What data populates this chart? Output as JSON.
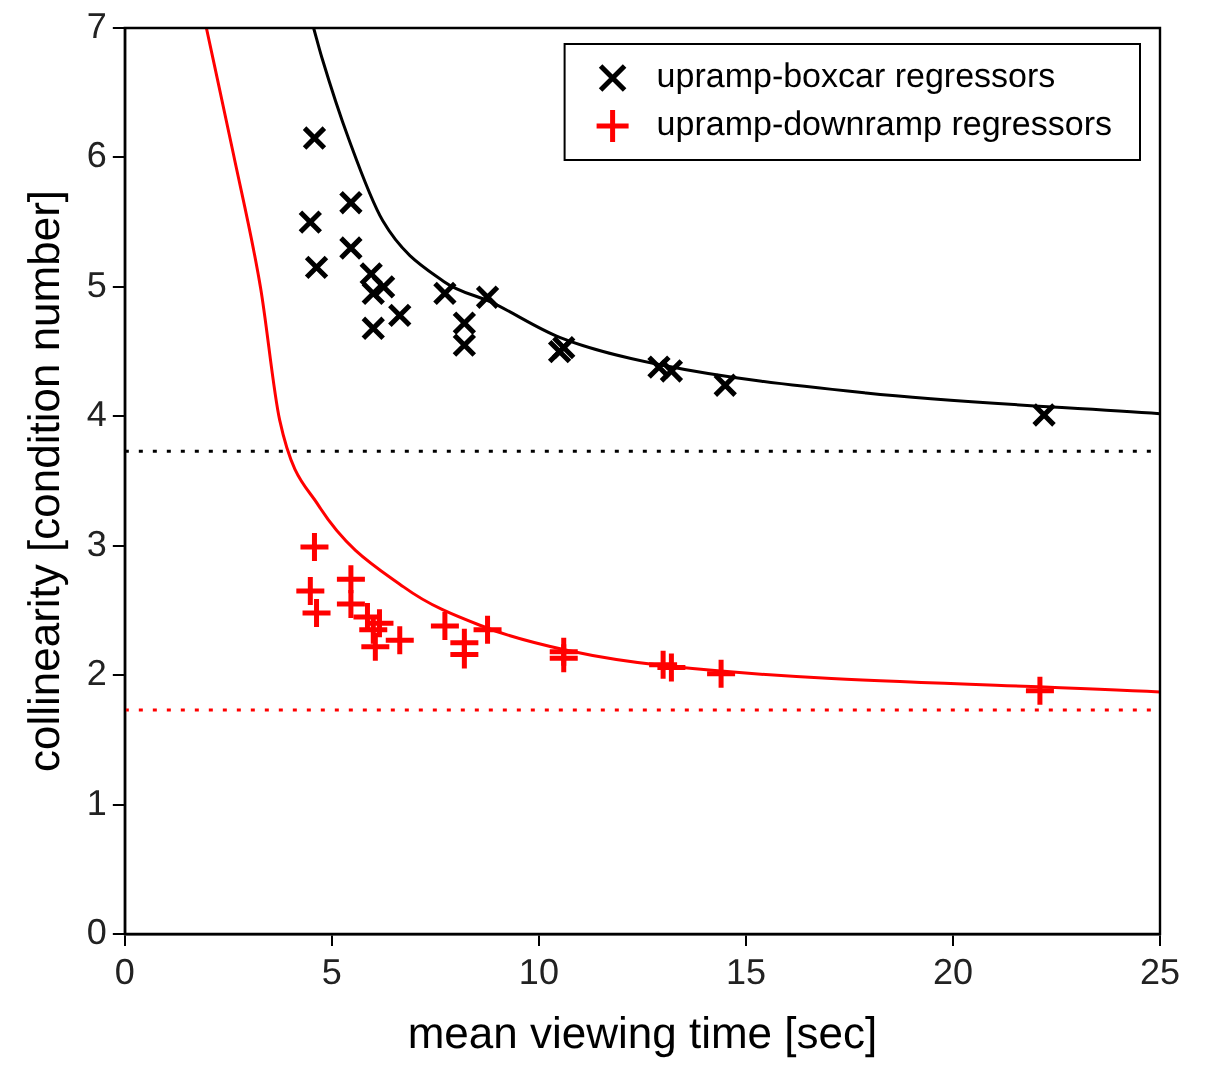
{
  "chart_data": {
    "type": "scatter",
    "xlabel": "mean viewing time [sec]",
    "ylabel": "collinearity [condition number]",
    "xlim": [
      0,
      25
    ],
    "ylim": [
      0,
      7
    ],
    "xticks": [
      0,
      5,
      10,
      15,
      20,
      25
    ],
    "yticks": [
      0,
      1,
      2,
      3,
      4,
      5,
      6,
      7
    ],
    "grid": false,
    "legend": "top right",
    "series": [
      {
        "name": "upramp-boxcar regressors",
        "color": "#000000",
        "marker": "x",
        "x": [
          4.58,
          5.46,
          4.48,
          4.63,
          5.46,
          5.95,
          6.25,
          6.0,
          6.0,
          6.64,
          7.73,
          8.76,
          8.2,
          8.2,
          10.5,
          10.6,
          12.9,
          13.2,
          14.5,
          22.2
        ],
        "values": [
          6.15,
          5.65,
          5.5,
          5.15,
          5.3,
          5.1,
          5.0,
          4.95,
          4.68,
          4.78,
          4.95,
          4.92,
          4.72,
          4.55,
          4.5,
          4.53,
          4.38,
          4.35,
          4.24,
          4.01
        ]
      },
      {
        "name": "upramp-downramp regressors",
        "color": "#ff0000",
        "marker": "cross",
        "x": [
          4.58,
          4.48,
          4.63,
          5.46,
          5.46,
          5.86,
          6.15,
          6.0,
          6.05,
          6.64,
          7.73,
          8.2,
          8.2,
          8.76,
          10.6,
          10.6,
          13.0,
          13.2,
          14.4,
          22.1
        ],
        "values": [
          2.99,
          2.65,
          2.48,
          2.74,
          2.55,
          2.45,
          2.4,
          2.35,
          2.22,
          2.27,
          2.38,
          2.25,
          2.16,
          2.35,
          2.13,
          2.18,
          2.08,
          2.06,
          2.01,
          1.88
        ]
      },
      {
        "type": "line",
        "color": "#000000",
        "marker": "none",
        "x": [
          4.56,
          4.76,
          5.41,
          6.23,
          7.71,
          8.86,
          10.5,
          12.9,
          17.9,
          25
        ],
        "values": [
          7,
          6.77,
          6.14,
          5.51,
          5.04,
          4.88,
          4.61,
          4.4,
          4.18,
          4.02
        ]
      },
      {
        "type": "line",
        "color": "#ff0000",
        "marker": "none",
        "x": [
          1.97,
          2.62,
          3.28,
          3.74,
          4.68,
          6.74,
          8.7,
          10.7,
          13.1,
          25
        ],
        "values": [
          7,
          6.03,
          4.99,
          3.97,
          3.31,
          2.68,
          2.37,
          2.19,
          2.07,
          1.87
        ]
      }
    ],
    "ref_lines": [
      {
        "axis": "y",
        "value": 3.73,
        "color": "#000000",
        "line_style": "dotted"
      },
      {
        "axis": "y",
        "value": 1.73,
        "color": "#ff0000",
        "line_style": "dotted"
      }
    ]
  }
}
